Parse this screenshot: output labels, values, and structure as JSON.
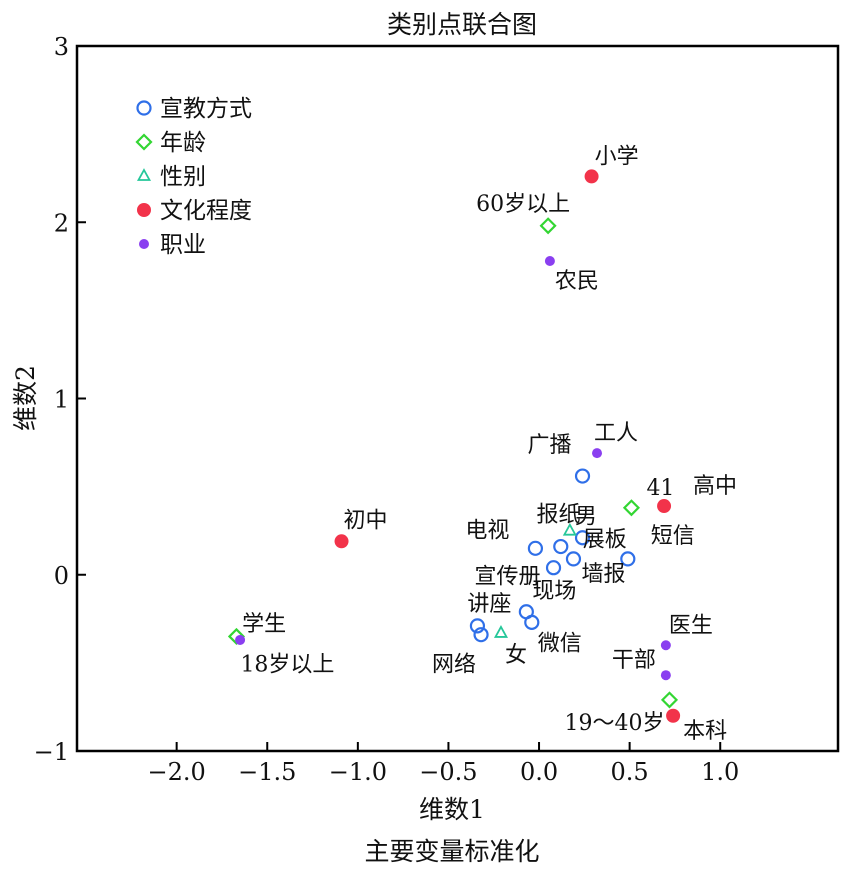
{
  "chart_data": {
    "type": "scatter",
    "title": "类别点联合图",
    "xlabel": "维数1",
    "ylabel": "维数2",
    "footnote": "主要变量标准化",
    "xlim": [
      -2.55,
      1.65
    ],
    "ylim": [
      -1,
      3
    ],
    "x_ticks": [
      {
        "value": -2.0,
        "label": "−2.0"
      },
      {
        "value": -1.5,
        "label": "−1.5"
      },
      {
        "value": -1.0,
        "label": "−1.0"
      },
      {
        "value": -0.5,
        "label": "−0.5"
      },
      {
        "value": 0.0,
        "label": "0.0"
      },
      {
        "value": 0.5,
        "label": "0.5"
      },
      {
        "value": 1.0,
        "label": "1.0"
      }
    ],
    "y_ticks": [
      {
        "value": -1,
        "label": "−1"
      },
      {
        "value": 0,
        "label": "0"
      },
      {
        "value": 1,
        "label": "1"
      },
      {
        "value": 2,
        "label": "2"
      },
      {
        "value": 3,
        "label": "3"
      }
    ],
    "grid": false,
    "legend_position": "top-left",
    "series": [
      {
        "name": "宣教方式",
        "marker": "open-circle",
        "color": "#2f6fe8",
        "points": [
          {
            "label": "广播",
            "x": 0.24,
            "y": 0.56
          },
          {
            "label": "报纸",
            "x": 0.24,
            "y": 0.21
          },
          {
            "label": "电视",
            "x": -0.02,
            "y": 0.15
          },
          {
            "label": "展板",
            "x": 0.12,
            "y": 0.16
          },
          {
            "label": "短信",
            "x": 0.49,
            "y": 0.09
          },
          {
            "label": "宣传册",
            "x": 0.08,
            "y": 0.04
          },
          {
            "label": "墙报",
            "x": 0.19,
            "y": 0.09
          },
          {
            "label": "现场",
            "x": -0.07,
            "y": -0.21
          },
          {
            "label": "讲座",
            "x": -0.34,
            "y": -0.29
          },
          {
            "label": "网络",
            "x": -0.32,
            "y": -0.34
          },
          {
            "label": "微信",
            "x": -0.04,
            "y": -0.27
          }
        ]
      },
      {
        "name": "年龄",
        "marker": "open-diamond",
        "color": "#33d633",
        "points": [
          {
            "label": "60岁以上",
            "x": 0.05,
            "y": 1.98
          },
          {
            "label": "41",
            "x": 0.51,
            "y": 0.38
          },
          {
            "label": "18岁以上",
            "x": -1.67,
            "y": -0.35
          },
          {
            "label": "19～40岁",
            "x": 0.72,
            "y": -0.71
          }
        ]
      },
      {
        "name": "性别",
        "marker": "open-triangle",
        "color": "#26c79a",
        "points": [
          {
            "label": "男",
            "x": 0.17,
            "y": 0.25
          },
          {
            "label": "女",
            "x": -0.21,
            "y": -0.33
          }
        ]
      },
      {
        "name": "文化程度",
        "marker": "filled-circle",
        "color": "#f2334a",
        "points": [
          {
            "label": "小学",
            "x": 0.29,
            "y": 2.26
          },
          {
            "label": "高中",
            "x": 0.69,
            "y": 0.39
          },
          {
            "label": "初中",
            "x": -1.09,
            "y": 0.19
          },
          {
            "label": "本科",
            "x": 0.74,
            "y": -0.8
          }
        ]
      },
      {
        "name": "职业",
        "marker": "small-filled-circle",
        "color": "#8a3ff0",
        "points": [
          {
            "label": "农民",
            "x": 0.06,
            "y": 1.78
          },
          {
            "label": "工人",
            "x": 0.32,
            "y": 0.69
          },
          {
            "label": "学生",
            "x": -1.65,
            "y": -0.37
          },
          {
            "label": "医生",
            "x": 0.7,
            "y": -0.4
          },
          {
            "label": "干部",
            "x": 0.7,
            "y": -0.57
          }
        ]
      }
    ]
  }
}
